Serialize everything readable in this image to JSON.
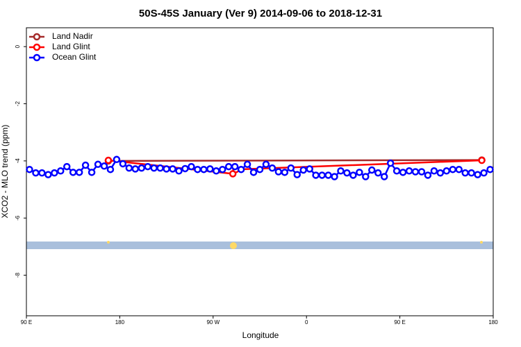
{
  "chart_data": {
    "type": "line",
    "title": "50S-45S January (Ver 9)   2014-09-06 to 2018-12-31",
    "x_label": "Longitude",
    "y_label": "XCO2 - MLO trend (ppm)",
    "xlim": [
      90,
      540
    ],
    "xticks": [
      {
        "value": 90,
        "label": "90 E"
      },
      {
        "value": 180,
        "label": "180"
      },
      {
        "value": 270,
        "label": "90 W"
      },
      {
        "value": 360,
        "label": "0"
      },
      {
        "value": 450,
        "label": "90 E"
      },
      {
        "value": 540,
        "label": "180"
      }
    ],
    "ylim": [
      -9.42,
      0.66
    ],
    "yticks": [
      0,
      -2,
      -4,
      -6,
      -8
    ],
    "legend": "top-left",
    "series": [
      {
        "name": "Land Nadir",
        "color": "#a52a2a",
        "x": [
          169,
          529
        ],
        "values": [
          -4.0,
          -3.97
        ]
      },
      {
        "name": "Land Glint",
        "color": "#ff0000",
        "x": [
          169,
          289,
          292,
          529
        ],
        "values": [
          -3.98,
          -4.45,
          -4.3,
          -3.98
        ]
      },
      {
        "name": "Ocean Glint",
        "color": "#0000ff",
        "x": [
          93,
          99,
          105,
          111,
          117,
          123,
          129,
          135,
          141,
          147,
          153,
          159,
          165,
          171,
          177,
          183,
          189,
          195,
          201,
          207,
          213,
          219,
          225,
          231,
          237,
          243,
          249,
          255,
          261,
          267,
          273,
          279,
          285,
          291,
          297,
          303,
          309,
          315,
          321,
          327,
          333,
          339,
          345,
          351,
          357,
          363,
          369,
          375,
          381,
          387,
          393,
          399,
          405,
          411,
          417,
          423,
          429,
          435,
          441,
          447,
          453,
          459,
          465,
          471,
          477,
          483,
          489,
          495,
          501,
          507,
          513,
          519,
          525,
          531,
          537
        ],
        "values": [
          -4.3,
          -4.42,
          -4.42,
          -4.48,
          -4.42,
          -4.35,
          -4.2,
          -4.4,
          -4.4,
          -4.15,
          -4.4,
          -4.12,
          -4.18,
          -4.3,
          -3.95,
          -4.1,
          -4.25,
          -4.28,
          -4.25,
          -4.2,
          -4.25,
          -4.25,
          -4.28,
          -4.28,
          -4.35,
          -4.27,
          -4.2,
          -4.3,
          -4.3,
          -4.28,
          -4.35,
          -4.3,
          -4.2,
          -4.2,
          -4.3,
          -4.12,
          -4.4,
          -4.3,
          -4.12,
          -4.25,
          -4.38,
          -4.4,
          -4.25,
          -4.48,
          -4.32,
          -4.28,
          -4.5,
          -4.5,
          -4.5,
          -4.55,
          -4.35,
          -4.42,
          -4.5,
          -4.4,
          -4.55,
          -4.32,
          -4.42,
          -4.55,
          -4.08,
          -4.35,
          -4.4,
          -4.35,
          -4.38,
          -4.38,
          -4.5,
          -4.35,
          -4.42,
          -4.35,
          -4.3,
          -4.3,
          -4.42,
          -4.42,
          -4.48,
          -4.42,
          -4.3
        ]
      }
    ]
  }
}
